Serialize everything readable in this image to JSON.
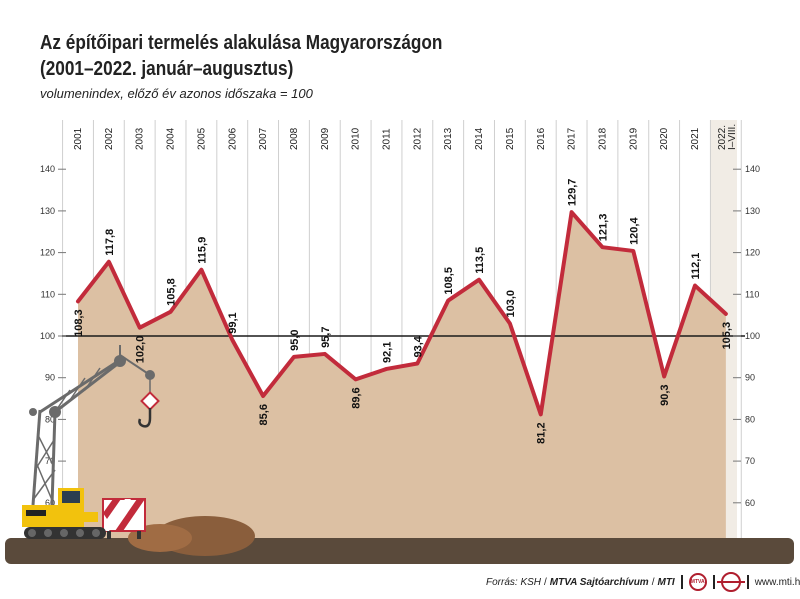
{
  "header": {
    "title_line1": "Az építőipari termelés alakulása Magyarországon",
    "title_line2": "(2001–2022. január–augusztus)",
    "subtitle": "volumenindex, előző év azonos időszaka = 100"
  },
  "chart_data": {
    "type": "area",
    "categories": [
      "2001",
      "2002",
      "2003",
      "2004",
      "2005",
      "2006",
      "2007",
      "2008",
      "2009",
      "2010",
      "2011",
      "2012",
      "2013",
      "2014",
      "2015",
      "2016",
      "2017",
      "2018",
      "2019",
      "2020",
      "2021",
      "2022. I–VIII."
    ],
    "values": [
      108.3,
      117.8,
      102.0,
      105.8,
      115.9,
      99.1,
      85.6,
      95.0,
      95.7,
      89.6,
      92.1,
      93.4,
      108.5,
      113.5,
      103.0,
      81.2,
      129.7,
      121.3,
      120.4,
      90.3,
      112.1,
      105.3
    ],
    "value_labels": [
      "108,3",
      "117,8",
      "102,0",
      "105,8",
      "115,9",
      "99,1",
      "85,6",
      "95,0",
      "95,7",
      "89,6",
      "92,1",
      "93,4",
      "108,5",
      "113,5",
      "103,0",
      "81,2",
      "129,7",
      "121,3",
      "120,4",
      "90,3",
      "112,1",
      "105,3"
    ],
    "y_ticks": [
      60,
      70,
      80,
      90,
      100,
      110,
      120,
      130,
      140
    ],
    "y_tick_labels": [
      "60",
      "70",
      "80",
      "90",
      "100",
      "110",
      "120",
      "130",
      "140"
    ],
    "ylim": [
      50,
      140
    ],
    "baseline": 100,
    "grid": "vertical",
    "colors": {
      "line": "#c22b3b",
      "area": "#dcc0a3",
      "baseline": "#1a1a1a",
      "ground": "#5a4a3b",
      "highlight_column": "#f1ece5",
      "crane": "#6b6b6b",
      "excavator": "#f2c20d"
    }
  },
  "footer": {
    "source": "Forrás: KSH",
    "agency": "MTVA Sajtóarchívum",
    "mti": "MTI",
    "logo_text": "MTVA",
    "website": "www.mti.hu"
  }
}
